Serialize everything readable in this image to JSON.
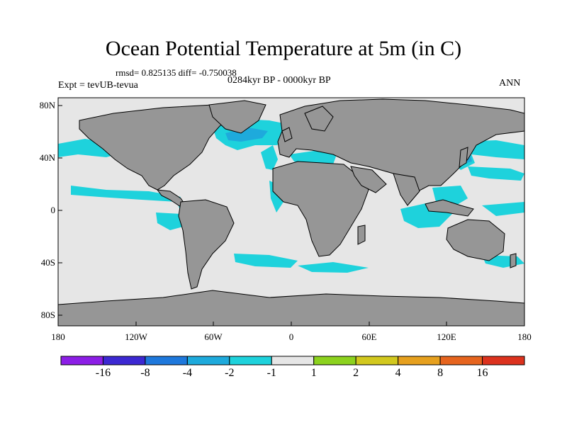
{
  "title": "Ocean Potential Temperature at 5m (in C)",
  "stats": "rmsd= 0.825135 diff= -0.750038",
  "period": "0284kyr BP - 0000kyr BP",
  "experiment": "Expt = tevUB-tevua",
  "season": "ANN",
  "lat_ticks": [
    "80N",
    "40N",
    "0",
    "40S",
    "80S"
  ],
  "lon_ticks": [
    "180",
    "120W",
    "60W",
    "0",
    "60E",
    "120E",
    "180"
  ],
  "colorbar": {
    "labels": [
      "-16",
      "-8",
      "-4",
      "-2",
      "-1",
      "1",
      "2",
      "4",
      "8",
      "16"
    ],
    "colors": [
      "#8c1ee6",
      "#3c28d2",
      "#1e78dc",
      "#1eaadc",
      "#1ed2dc",
      "#e6e6e6",
      "#8cd21e",
      "#d2c81e",
      "#e6a01e",
      "#e6641e",
      "#dc321e"
    ]
  },
  "colors": {
    "land": "#969696",
    "ocean_neutral": "#e6e6e6",
    "cooling_light": "#1ed2dc",
    "cooling_medium": "#1eaadc"
  }
}
